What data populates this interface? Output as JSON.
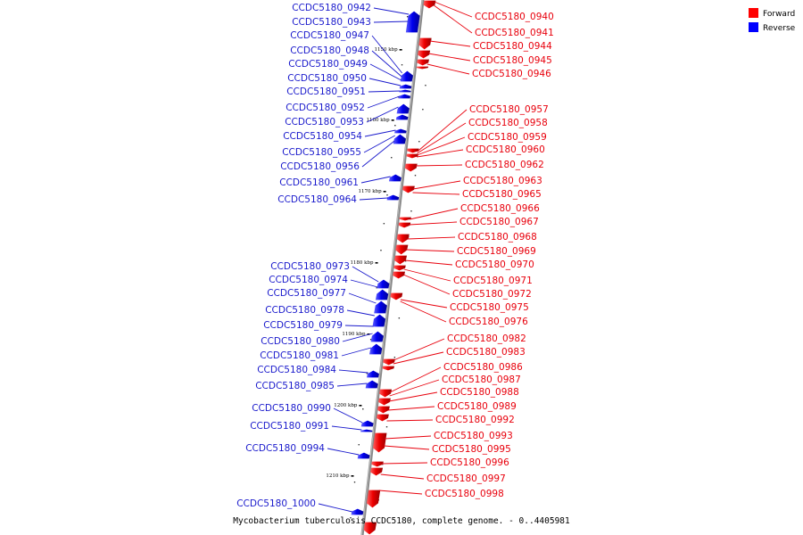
{
  "title": "Mycobacterium tuberculosis CCDC5180, complete genome. - 0..4405981",
  "legend": {
    "forward": "Forward",
    "reverse": "Reverse",
    "forward_color": "#ff0000",
    "reverse_color": "#0000ff"
  },
  "ticks": [
    "1150 kbp",
    "1160 kbp",
    "1170 kbp",
    "1180 kbp",
    "1190 kbp",
    "1200 kbp",
    "1210 kbp"
  ],
  "forward_labels": [
    "CCDC5180_0940",
    "CCDC5180_0941",
    "CCDC5180_0944",
    "CCDC5180_0945",
    "CCDC5180_0946",
    "CCDC5180_0957",
    "CCDC5180_0958",
    "CCDC5180_0959",
    "CCDC5180_0960",
    "CCDC5180_0962",
    "CCDC5180_0963",
    "CCDC5180_0965",
    "CCDC5180_0966",
    "CCDC5180_0967",
    "CCDC5180_0968",
    "CCDC5180_0969",
    "CCDC5180_0970",
    "CCDC5180_0971",
    "CCDC5180_0972",
    "CCDC5180_0975",
    "CCDC5180_0976",
    "CCDC5180_0982",
    "CCDC5180_0983",
    "CCDC5180_0986",
    "CCDC5180_0987",
    "CCDC5180_0988",
    "CCDC5180_0989",
    "CCDC5180_0992",
    "CCDC5180_0993",
    "CCDC5180_0995",
    "CCDC5180_0996",
    "CCDC5180_0997",
    "CCDC5180_0998"
  ],
  "reverse_labels": [
    "CCDC5180_0942",
    "CCDC5180_0943",
    "CCDC5180_0947",
    "CCDC5180_0948",
    "CCDC5180_0949",
    "CCDC5180_0950",
    "CCDC5180_0951",
    "CCDC5180_0952",
    "CCDC5180_0953",
    "CCDC5180_0954",
    "CCDC5180_0955",
    "CCDC5180_0956",
    "CCDC5180_0961",
    "CCDC5180_0964",
    "CCDC5180_0973",
    "CCDC5180_0974",
    "CCDC5180_0977",
    "CCDC5180_0978",
    "CCDC5180_0979",
    "CCDC5180_0980",
    "CCDC5180_0981",
    "CCDC5180_0984",
    "CCDC5180_0985",
    "CCDC5180_0990",
    "CCDC5180_0991",
    "CCDC5180_0994",
    "CCDC5180_1000"
  ]
}
